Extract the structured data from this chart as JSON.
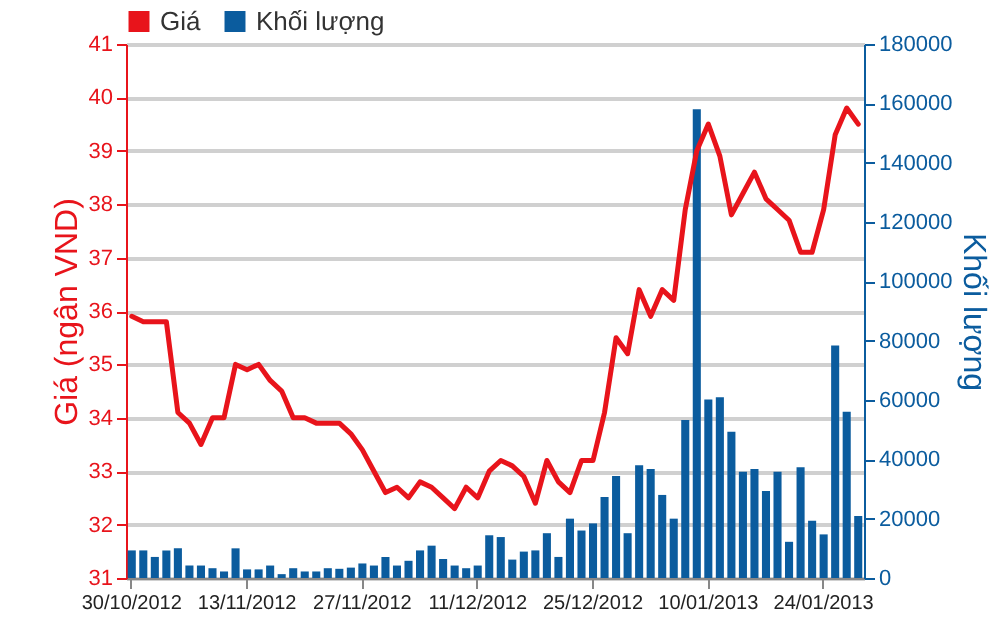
{
  "chart_data": {
    "type": "line",
    "ylabel": "Giá (ngân VND)",
    "y2label": "Khối lượng",
    "categories": [
      "30/10/2012",
      null,
      null,
      null,
      null,
      null,
      null,
      null,
      null,
      null,
      "13/11/2012",
      null,
      null,
      null,
      null,
      null,
      null,
      null,
      null,
      null,
      "27/11/2012",
      null,
      null,
      null,
      null,
      null,
      null,
      null,
      null,
      null,
      "11/12/2012",
      null,
      null,
      null,
      null,
      null,
      null,
      null,
      null,
      null,
      "25/12/2012",
      null,
      null,
      null,
      null,
      null,
      null,
      null,
      null,
      null,
      "10/01/2013",
      null,
      null,
      null,
      null,
      null,
      null,
      null,
      null,
      null,
      "24/01/2013",
      null,
      null,
      null
    ],
    "series": [
      {
        "name": "Khối lượng",
        "type": "bar",
        "axis": "y2",
        "color": "#0b5c9e",
        "values": [
          9300,
          9300,
          7100,
          9300,
          10000,
          4200,
          4200,
          3300,
          2200,
          10000,
          2900,
          2900,
          4200,
          1300,
          3300,
          2200,
          2200,
          3300,
          3100,
          3500,
          4900,
          4200,
          7100,
          4200,
          5800,
          9300,
          10900,
          6400,
          4200,
          3300,
          4200,
          14400,
          13800,
          6200,
          8900,
          9300,
          15100,
          7100,
          20000,
          16000,
          18400,
          27300,
          34400,
          15100,
          38000,
          36700,
          28000,
          20000,
          53300,
          158000,
          60200,
          60900,
          49300,
          35800,
          36700,
          29300,
          35800,
          12200,
          37300,
          19300,
          14700,
          78400,
          56000,
          20900
        ]
      },
      {
        "name": "Giá",
        "color": "#e8141b",
        "values": [
          35.9,
          35.8,
          35.8,
          35.8,
          34.1,
          33.9,
          33.5,
          34.0,
          34.0,
          35.0,
          34.9,
          35.0,
          34.7,
          34.5,
          34.0,
          34.0,
          33.9,
          33.9,
          33.9,
          33.7,
          33.4,
          33.0,
          32.6,
          32.7,
          32.5,
          32.8,
          32.7,
          32.5,
          32.3,
          32.7,
          32.5,
          33.0,
          33.2,
          33.1,
          32.9,
          32.4,
          33.2,
          32.8,
          32.6,
          33.2,
          33.2,
          34.1,
          35.5,
          35.2,
          36.4,
          35.9,
          36.4,
          36.2,
          37.9,
          39.0,
          39.5,
          38.9,
          37.8,
          38.2,
          38.6,
          38.1,
          37.9,
          37.7,
          37.1,
          37.1,
          37.9,
          39.3,
          39.8,
          39.5
        ]
      }
    ],
    "ylim": [
      31,
      41
    ],
    "yticks": [
      31,
      32,
      33,
      34,
      35,
      36,
      37,
      38,
      39,
      40,
      41
    ],
    "y2lim": [
      0,
      180000
    ],
    "y2ticks": [
      0,
      20000,
      40000,
      60000,
      80000,
      100000,
      120000,
      140000,
      160000,
      180000
    ],
    "grid": "y",
    "legend": "top left"
  }
}
